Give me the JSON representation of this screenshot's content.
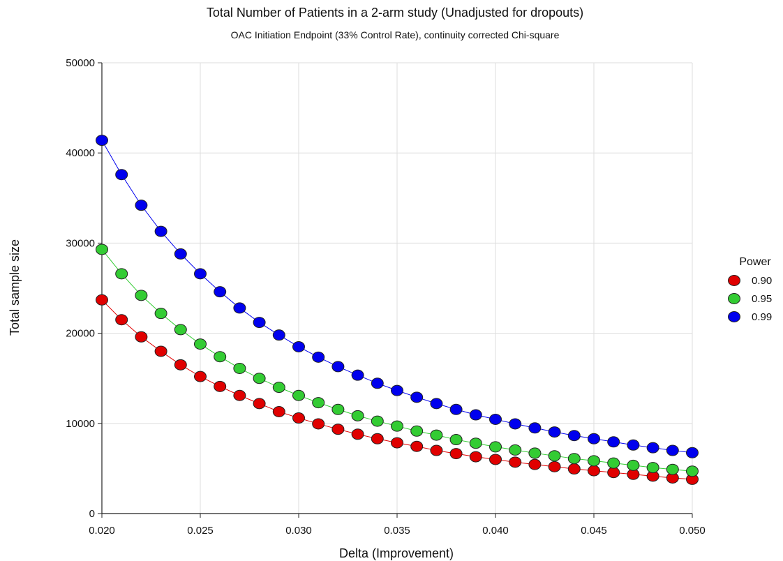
{
  "chart_data": {
    "type": "line",
    "title": "Total Number of Patients in a 2-arm study (Unadjusted for dropouts)",
    "subtitle": "OAC Initiation Endpoint (33% Control Rate), continuity corrected Chi-square",
    "xlabel": "Delta (Improvement)",
    "ylabel": "Total sample size",
    "xlim": [
      0.02,
      0.05
    ],
    "ylim": [
      0,
      50000
    ],
    "xticks": [
      "0.020",
      "0.025",
      "0.030",
      "0.035",
      "0.040",
      "0.045",
      "0.050"
    ],
    "yticks": [
      "0",
      "10000",
      "20000",
      "30000",
      "40000",
      "50000"
    ],
    "grid": true,
    "legend": {
      "title": "Power",
      "position": "right"
    },
    "x": [
      0.02,
      0.021,
      0.022,
      0.023,
      0.024,
      0.025,
      0.026,
      0.027,
      0.028,
      0.029,
      0.03,
      0.031,
      0.032,
      0.033,
      0.034,
      0.035,
      0.036,
      0.037,
      0.038,
      0.039,
      0.04,
      0.041,
      0.042,
      0.043,
      0.044,
      0.045,
      0.046,
      0.047,
      0.048,
      0.049,
      0.05
    ],
    "series": [
      {
        "name": "0.90",
        "color": "#e00000",
        "values": [
          23700,
          21500,
          19600,
          18000,
          16500,
          15200,
          14100,
          13100,
          12200,
          11300,
          10600,
          9950,
          9350,
          8800,
          8300,
          7850,
          7450,
          7000,
          6650,
          6300,
          6000,
          5700,
          5450,
          5200,
          4950,
          4750,
          4550,
          4350,
          4150,
          3950,
          3800
        ]
      },
      {
        "name": "0.95",
        "color": "#33cc33",
        "values": [
          29300,
          26600,
          24200,
          22200,
          20400,
          18800,
          17400,
          16100,
          15000,
          14000,
          13100,
          12300,
          11550,
          10850,
          10250,
          9700,
          9150,
          8700,
          8200,
          7800,
          7400,
          7050,
          6700,
          6400,
          6100,
          5850,
          5600,
          5350,
          5100,
          4900,
          4700
        ]
      },
      {
        "name": "0.99",
        "color": "#0000ee",
        "values": [
          41400,
          37600,
          34200,
          31300,
          28800,
          26600,
          24600,
          22800,
          21200,
          19800,
          18500,
          17350,
          16300,
          15350,
          14450,
          13650,
          12900,
          12200,
          11550,
          10950,
          10450,
          9950,
          9500,
          9050,
          8650,
          8300,
          7950,
          7600,
          7300,
          7000,
          6750
        ]
      }
    ]
  }
}
